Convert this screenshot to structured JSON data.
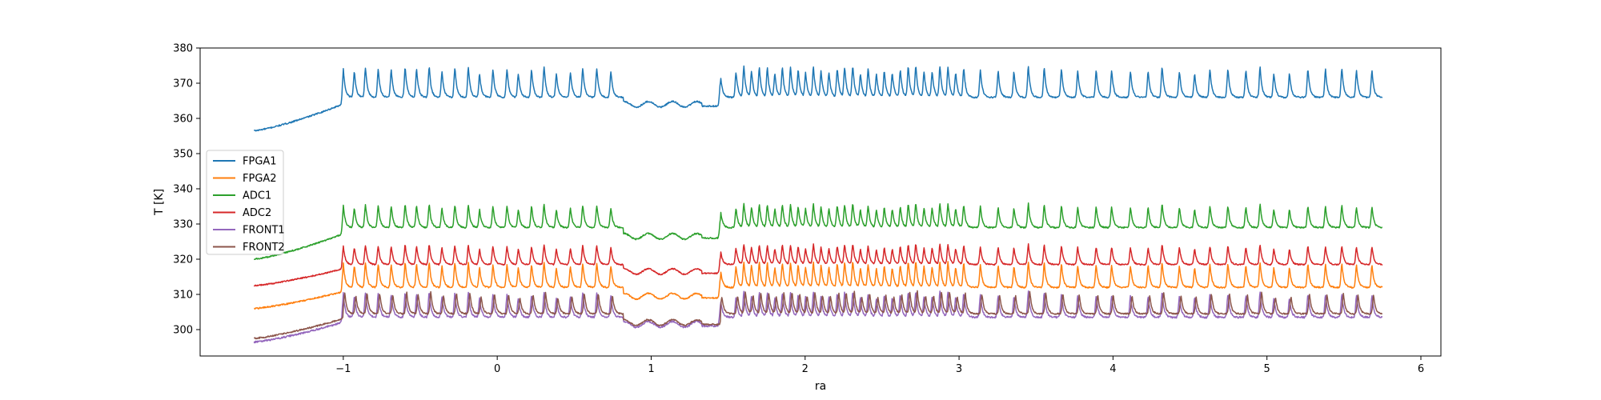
{
  "chart_data": {
    "type": "line",
    "xlabel": "ra",
    "ylabel": "T [K]",
    "xlim": [
      -1.93,
      6.13
    ],
    "ylim": [
      292.5,
      380
    ],
    "xticks": [
      -1,
      0,
      1,
      2,
      3,
      4,
      5,
      6
    ],
    "xtick_labels": [
      "−1",
      "0",
      "1",
      "2",
      "3",
      "4",
      "5",
      "6"
    ],
    "yticks": [
      300,
      310,
      320,
      330,
      340,
      350,
      360,
      370,
      380
    ],
    "ytick_labels": [
      "300",
      "310",
      "320",
      "330",
      "340",
      "350",
      "360",
      "370",
      "380"
    ],
    "grid": false,
    "legend_position": "center-left",
    "x_range": [
      -1.58,
      5.75
    ],
    "gap": [
      0.82,
      1.33
    ],
    "drop_at": 1.45,
    "series": [
      {
        "name": "FPGA1",
        "color": "#1f77b4",
        "start": 356.5,
        "base": 366,
        "gap_level": 364,
        "peak": 8.5,
        "noise": 0.4,
        "peak_offset": 0.0
      },
      {
        "name": "FPGA2",
        "color": "#ff7f0e",
        "start": 306,
        "base": 312,
        "gap_level": 309.5,
        "peak": 7,
        "noise": 0.4,
        "peak_offset": 0.0
      },
      {
        "name": "ADC1",
        "color": "#2ca02c",
        "start": 320,
        "base": 329,
        "gap_level": 326.5,
        "peak": 6.5,
        "noise": 0.4,
        "peak_offset": 0.0
      },
      {
        "name": "ADC2",
        "color": "#d62728",
        "start": 312.5,
        "base": 318.5,
        "gap_level": 316.5,
        "peak": 5.5,
        "noise": 0.35,
        "peak_offset": 0.0
      },
      {
        "name": "FRONT1",
        "color": "#9467bd",
        "start": 296.5,
        "base": 303.5,
        "gap_level": 301.5,
        "peak": 7,
        "noise": 0.5,
        "peak_offset": 0.0
      },
      {
        "name": "FRONT2",
        "color": "#8c564b",
        "start": 297.5,
        "base": 304.5,
        "gap_level": 302,
        "peak": 6,
        "noise": 0.4,
        "peak_offset": 0.01
      }
    ]
  }
}
